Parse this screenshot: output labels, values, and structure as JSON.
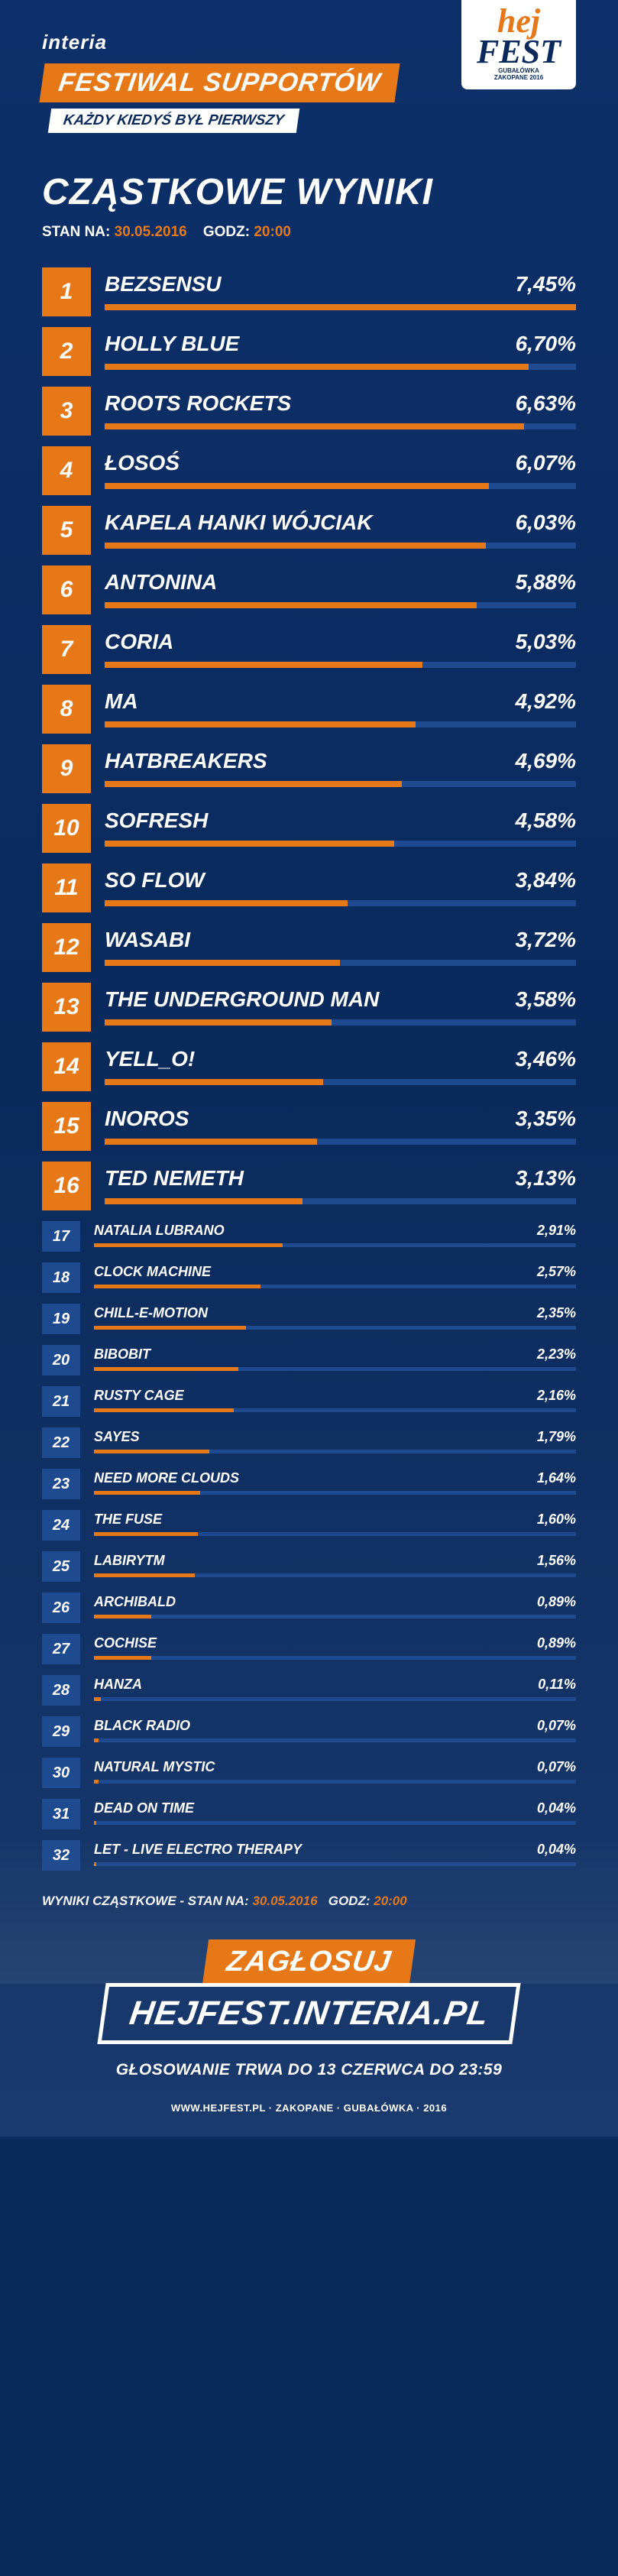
{
  "colors": {
    "background": "#0a2a5c",
    "accent_orange": "#e77817",
    "bar_track": "#1e4a8f",
    "text": "#ffffff"
  },
  "header": {
    "brand": "interia",
    "banner": "FESTIWAL SUPPORTÓW",
    "subbanner": "KAŻDY KIEDYŚ BYŁ PIERWSZY",
    "logo_main": "hej",
    "logo_fest": "FEST",
    "logo_sub1": "GUBAŁÓWKA",
    "logo_sub2": "ZAKOPANE 2016"
  },
  "title": "CZĄSTKOWE WYNIKI",
  "subtitle": {
    "prefix": "STAN NA:",
    "date": "30.05.2016",
    "time_label": "GODZ:",
    "time": "20:00"
  },
  "chart": {
    "type": "bar",
    "max_percent": 7.45,
    "big_rows_count": 16,
    "bar_fill_color": "#e77817",
    "bar_track_color": "#1e4a8f",
    "rank_big_bg": "#e77817",
    "rank_small_bg": "#1e4a8f",
    "name_fontsize_big": 28,
    "name_fontsize_small": 18,
    "rows": [
      {
        "rank": 1,
        "name": "BEZSENSU",
        "pct": "7,45%",
        "width": 100
      },
      {
        "rank": 2,
        "name": "HOLLY BLUE",
        "pct": "6,70%",
        "width": 89.9
      },
      {
        "rank": 3,
        "name": "ROOTS ROCKETS",
        "pct": "6,63%",
        "width": 89.0
      },
      {
        "rank": 4,
        "name": "ŁOSOŚ",
        "pct": "6,07%",
        "width": 81.5
      },
      {
        "rank": 5,
        "name": "KAPELA HANKI WÓJCIAK",
        "pct": "6,03%",
        "width": 80.9
      },
      {
        "rank": 6,
        "name": "ANTONINA",
        "pct": "5,88%",
        "width": 78.9
      },
      {
        "rank": 7,
        "name": "CORIA",
        "pct": "5,03%",
        "width": 67.5
      },
      {
        "rank": 8,
        "name": "MA",
        "pct": "4,92%",
        "width": 66.0
      },
      {
        "rank": 9,
        "name": "HATBREAKERS",
        "pct": "4,69%",
        "width": 63.0
      },
      {
        "rank": 10,
        "name": "SOFRESH",
        "pct": "4,58%",
        "width": 61.5
      },
      {
        "rank": 11,
        "name": "SO FLOW",
        "pct": "3,84%",
        "width": 51.5
      },
      {
        "rank": 12,
        "name": "WASABI",
        "pct": "3,72%",
        "width": 49.9
      },
      {
        "rank": 13,
        "name": "THE UNDERGROUND MAN",
        "pct": "3,58%",
        "width": 48.1
      },
      {
        "rank": 14,
        "name": "YELL_O!",
        "pct": "3,46%",
        "width": 46.4
      },
      {
        "rank": 15,
        "name": "INOROS",
        "pct": "3,35%",
        "width": 45.0
      },
      {
        "rank": 16,
        "name": "TED NEMETH",
        "pct": "3,13%",
        "width": 42.0
      },
      {
        "rank": 17,
        "name": "NATALIA LUBRANO",
        "pct": "2,91%",
        "width": 39.1
      },
      {
        "rank": 18,
        "name": "CLOCK MACHINE",
        "pct": "2,57%",
        "width": 34.5
      },
      {
        "rank": 19,
        "name": "CHILL-E-MOTION",
        "pct": "2,35%",
        "width": 31.5
      },
      {
        "rank": 20,
        "name": "BIBOBIT",
        "pct": "2,23%",
        "width": 29.9
      },
      {
        "rank": 21,
        "name": "RUSTY CAGE",
        "pct": "2,16%",
        "width": 29.0
      },
      {
        "rank": 22,
        "name": "SAYES",
        "pct": "1,79%",
        "width": 24.0
      },
      {
        "rank": 23,
        "name": "NEED MORE CLOUDS",
        "pct": "1,64%",
        "width": 22.0
      },
      {
        "rank": 24,
        "name": "THE FUSE",
        "pct": "1,60%",
        "width": 21.5
      },
      {
        "rank": 25,
        "name": "LABIRYTM",
        "pct": "1,56%",
        "width": 20.9
      },
      {
        "rank": 26,
        "name": "ARCHIBALD",
        "pct": "0,89%",
        "width": 11.9
      },
      {
        "rank": 27,
        "name": "COCHISE",
        "pct": "0,89%",
        "width": 11.9
      },
      {
        "rank": 28,
        "name": "HANZA",
        "pct": "0,11%",
        "width": 1.5
      },
      {
        "rank": 29,
        "name": "BLACK RADIO",
        "pct": "0,07%",
        "width": 0.9
      },
      {
        "rank": 30,
        "name": "NATURAL MYSTIC",
        "pct": "0,07%",
        "width": 0.9
      },
      {
        "rank": 31,
        "name": "DEAD ON TIME",
        "pct": "0,04%",
        "width": 0.5
      },
      {
        "rank": 32,
        "name": "LET - LIVE ELECTRO THERAPY",
        "pct": "0,04%",
        "width": 0.5
      }
    ]
  },
  "footer_note": {
    "prefix": "WYNIKI CZĄSTKOWE - STAN NA:",
    "date": "30.05.2016",
    "time_label": "GODZ:",
    "time": "20:00"
  },
  "cta": {
    "line1": "ZAGŁOSUJ",
    "line2": "HEJFEST.INTERIA.PL",
    "line3": "GŁOSOWANIE TRWA DO 13 CZERWCA DO 23:59"
  },
  "bottom": "WWW.HEJFEST.PL · ZAKOPANE · GUBAŁÓWKA · 2016"
}
